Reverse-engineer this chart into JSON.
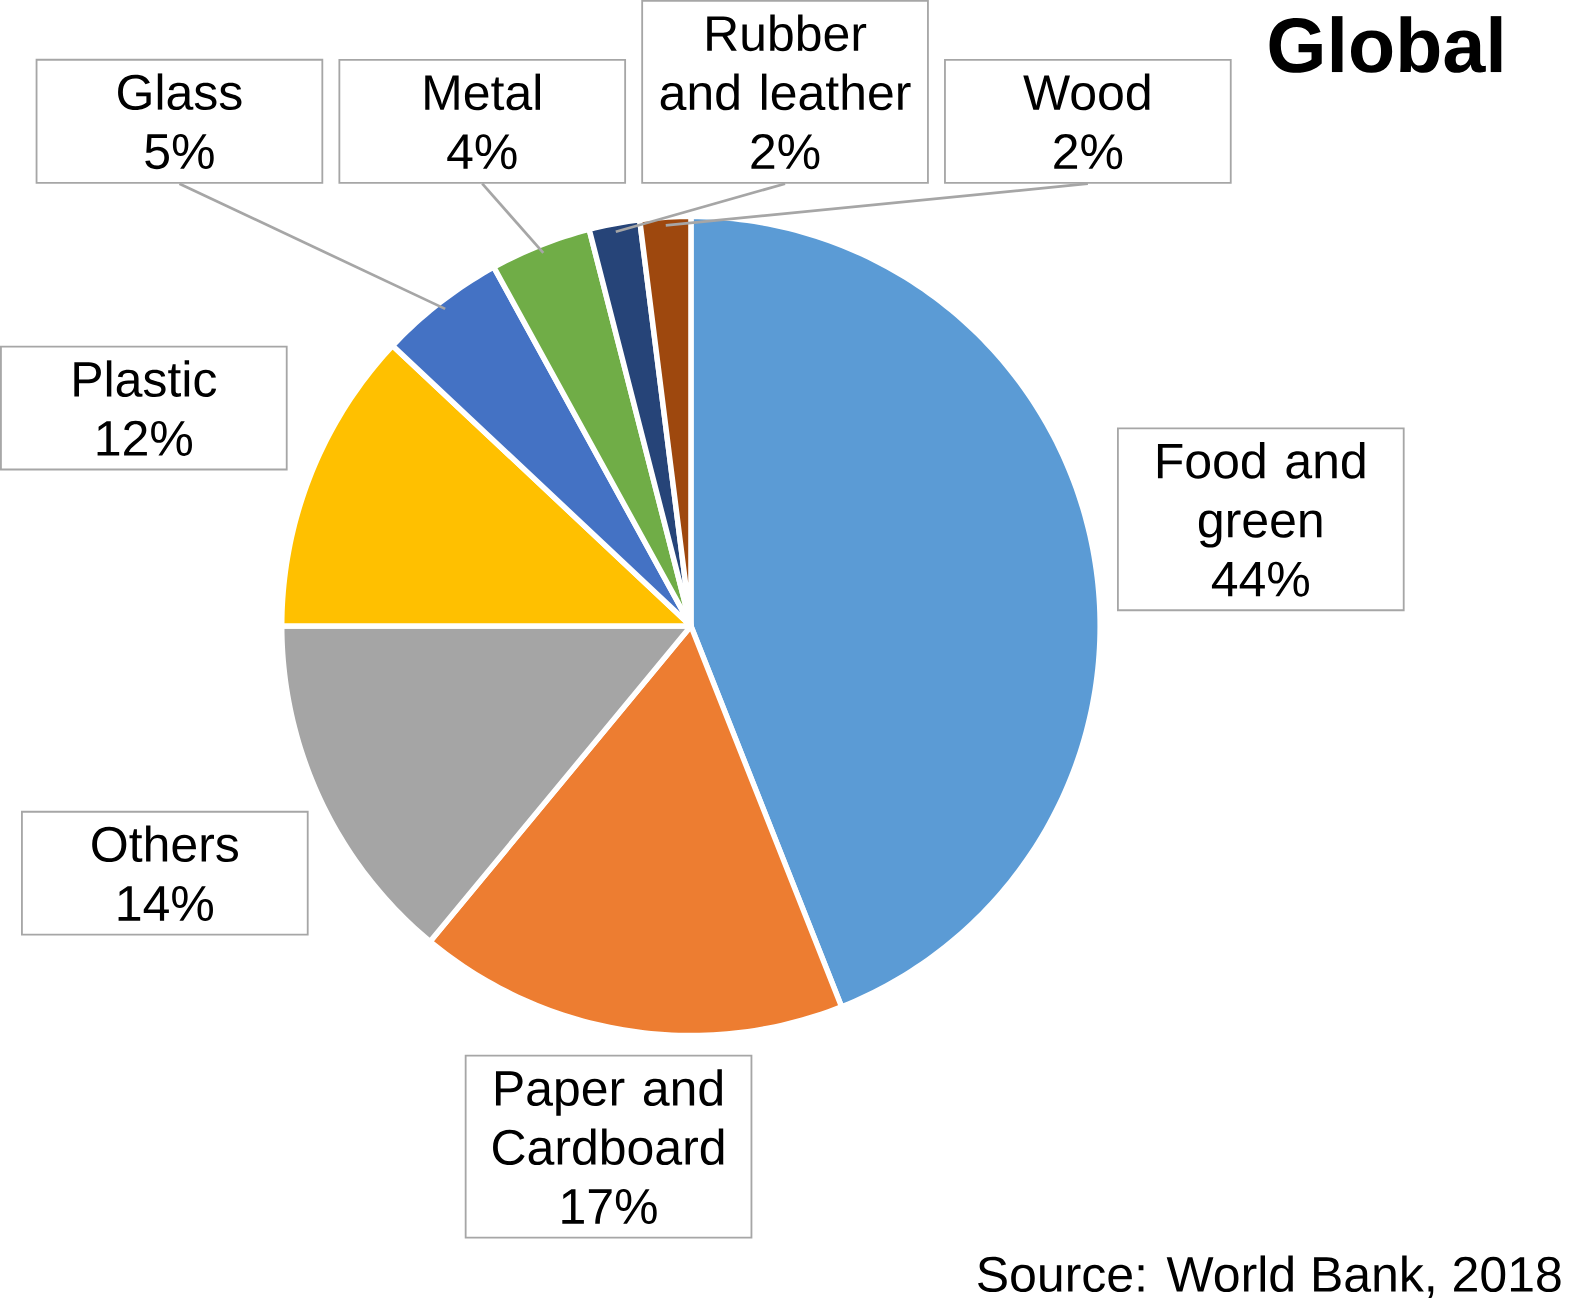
{
  "chart_data": {
    "type": "pie",
    "title": "Global",
    "categories": [
      "Food and green",
      "Paper and Cardboard",
      "Others",
      "Plastic",
      "Glass",
      "Metal",
      "Rubber and leather",
      "Wood"
    ],
    "values": [
      44,
      17,
      14,
      12,
      5,
      4,
      2,
      2
    ],
    "value_labels": [
      "44%",
      "17%",
      "14%",
      "12%",
      "5%",
      "4%",
      "2%",
      "2%"
    ],
    "colors": [
      "#5b9bd5",
      "#ed7d31",
      "#a5a5a5",
      "#ffc000",
      "#4472c4",
      "#70ad47",
      "#264478",
      "#9e480e"
    ],
    "annotations": [
      "Source: World Bank, 2018"
    ]
  }
}
